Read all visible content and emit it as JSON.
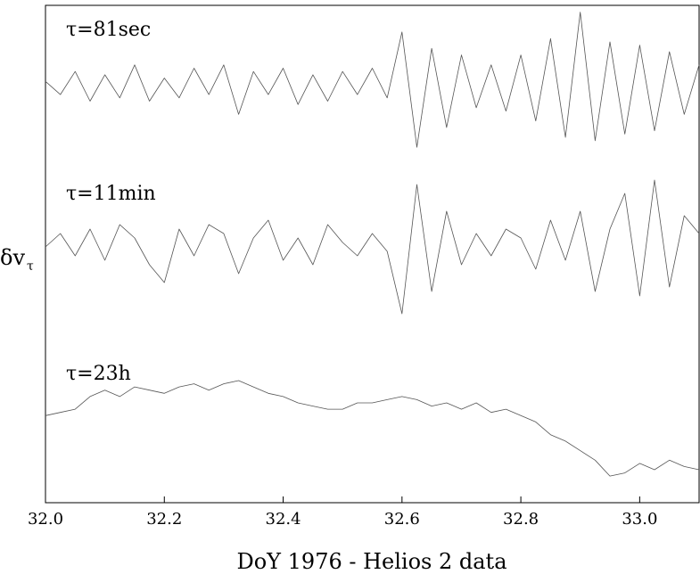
{
  "chart_data": {
    "type": "line",
    "xlabel": "DoY 1976 - Helios 2 data",
    "ylabel": "δv",
    "ylabel_subscript": "τ",
    "xlim": [
      32.0,
      33.1
    ],
    "x_ticks": [
      "32.0",
      "32.2",
      "32.4",
      "32.6",
      "32.8",
      "33.0"
    ],
    "grid": false,
    "panels": [
      {
        "label": "τ=81sec",
        "x": [
          32.0,
          32.025,
          32.05,
          32.075,
          32.1,
          32.125,
          32.15,
          32.175,
          32.2,
          32.225,
          32.25,
          32.275,
          32.3,
          32.325,
          32.35,
          32.375,
          32.4,
          32.425,
          32.45,
          32.475,
          32.5,
          32.525,
          32.55,
          32.575,
          32.6,
          32.625,
          32.65,
          32.675,
          32.7,
          32.725,
          32.75,
          32.775,
          32.8,
          32.825,
          32.85,
          32.875,
          32.9,
          32.925,
          32.95,
          32.975,
          33.0,
          33.025,
          33.05,
          33.075,
          33.1
        ],
        "values": [
          0.1,
          -0.3,
          0.4,
          -0.5,
          0.3,
          -0.4,
          0.6,
          -0.5,
          0.2,
          -0.4,
          0.5,
          -0.3,
          0.6,
          -0.9,
          0.4,
          -0.3,
          0.5,
          -0.6,
          0.3,
          -0.5,
          0.4,
          -0.3,
          0.5,
          -0.4,
          1.6,
          -1.9,
          1.1,
          -1.3,
          0.9,
          -0.7,
          0.6,
          -0.8,
          0.9,
          -1.1,
          1.4,
          -1.6,
          2.2,
          -1.7,
          1.3,
          -1.5,
          1.2,
          -1.4,
          1.0,
          -0.9,
          0.6
        ],
        "ylim": [
          -2.3,
          2.3
        ]
      },
      {
        "label": "τ=11min",
        "x": [
          32.0,
          32.025,
          32.05,
          32.075,
          32.1,
          32.125,
          32.15,
          32.175,
          32.2,
          32.225,
          32.25,
          32.275,
          32.3,
          32.325,
          32.35,
          32.375,
          32.4,
          32.425,
          32.45,
          32.475,
          32.5,
          32.525,
          32.55,
          32.575,
          32.6,
          32.625,
          32.65,
          32.675,
          32.7,
          32.725,
          32.75,
          32.775,
          32.8,
          32.825,
          32.85,
          32.875,
          32.9,
          32.925,
          32.95,
          32.975,
          33.0,
          33.025,
          33.05,
          33.075,
          33.1
        ],
        "values": [
          0.0,
          0.3,
          -0.2,
          0.4,
          -0.3,
          0.5,
          0.2,
          -0.4,
          -0.8,
          0.4,
          -0.2,
          0.5,
          0.3,
          -0.6,
          0.2,
          0.6,
          -0.3,
          0.2,
          -0.4,
          0.5,
          0.1,
          -0.2,
          0.3,
          -0.1,
          -1.5,
          1.4,
          -1.0,
          0.8,
          -0.4,
          0.3,
          -0.2,
          0.4,
          0.2,
          -0.5,
          0.6,
          -0.3,
          0.8,
          -1.0,
          0.4,
          1.2,
          -1.1,
          1.5,
          -0.9,
          0.7,
          0.3
        ],
        "ylim": [
          -1.7,
          1.7
        ]
      },
      {
        "label": "τ=23h",
        "x": [
          32.0,
          32.025,
          32.05,
          32.075,
          32.1,
          32.125,
          32.15,
          32.175,
          32.2,
          32.225,
          32.25,
          32.275,
          32.3,
          32.325,
          32.35,
          32.375,
          32.4,
          32.425,
          32.45,
          32.475,
          32.5,
          32.525,
          32.55,
          32.575,
          32.6,
          32.625,
          32.65,
          32.675,
          32.7,
          32.725,
          32.75,
          32.775,
          32.8,
          32.825,
          32.85,
          32.875,
          32.9,
          32.925,
          32.95,
          32.975,
          33.0,
          33.025,
          33.05,
          33.075,
          33.1
        ],
        "values": [
          0.0,
          0.05,
          0.1,
          0.3,
          0.4,
          0.3,
          0.45,
          0.4,
          0.35,
          0.45,
          0.5,
          0.4,
          0.5,
          0.55,
          0.45,
          0.35,
          0.3,
          0.2,
          0.15,
          0.1,
          0.1,
          0.2,
          0.2,
          0.25,
          0.3,
          0.25,
          0.15,
          0.2,
          0.1,
          0.2,
          0.05,
          0.1,
          0.0,
          -0.1,
          -0.3,
          -0.4,
          -0.55,
          -0.7,
          -0.95,
          -0.9,
          -0.75,
          -0.85,
          -0.7,
          -0.8,
          -0.85
        ],
        "ylim": [
          -1.2,
          0.9
        ]
      }
    ]
  }
}
